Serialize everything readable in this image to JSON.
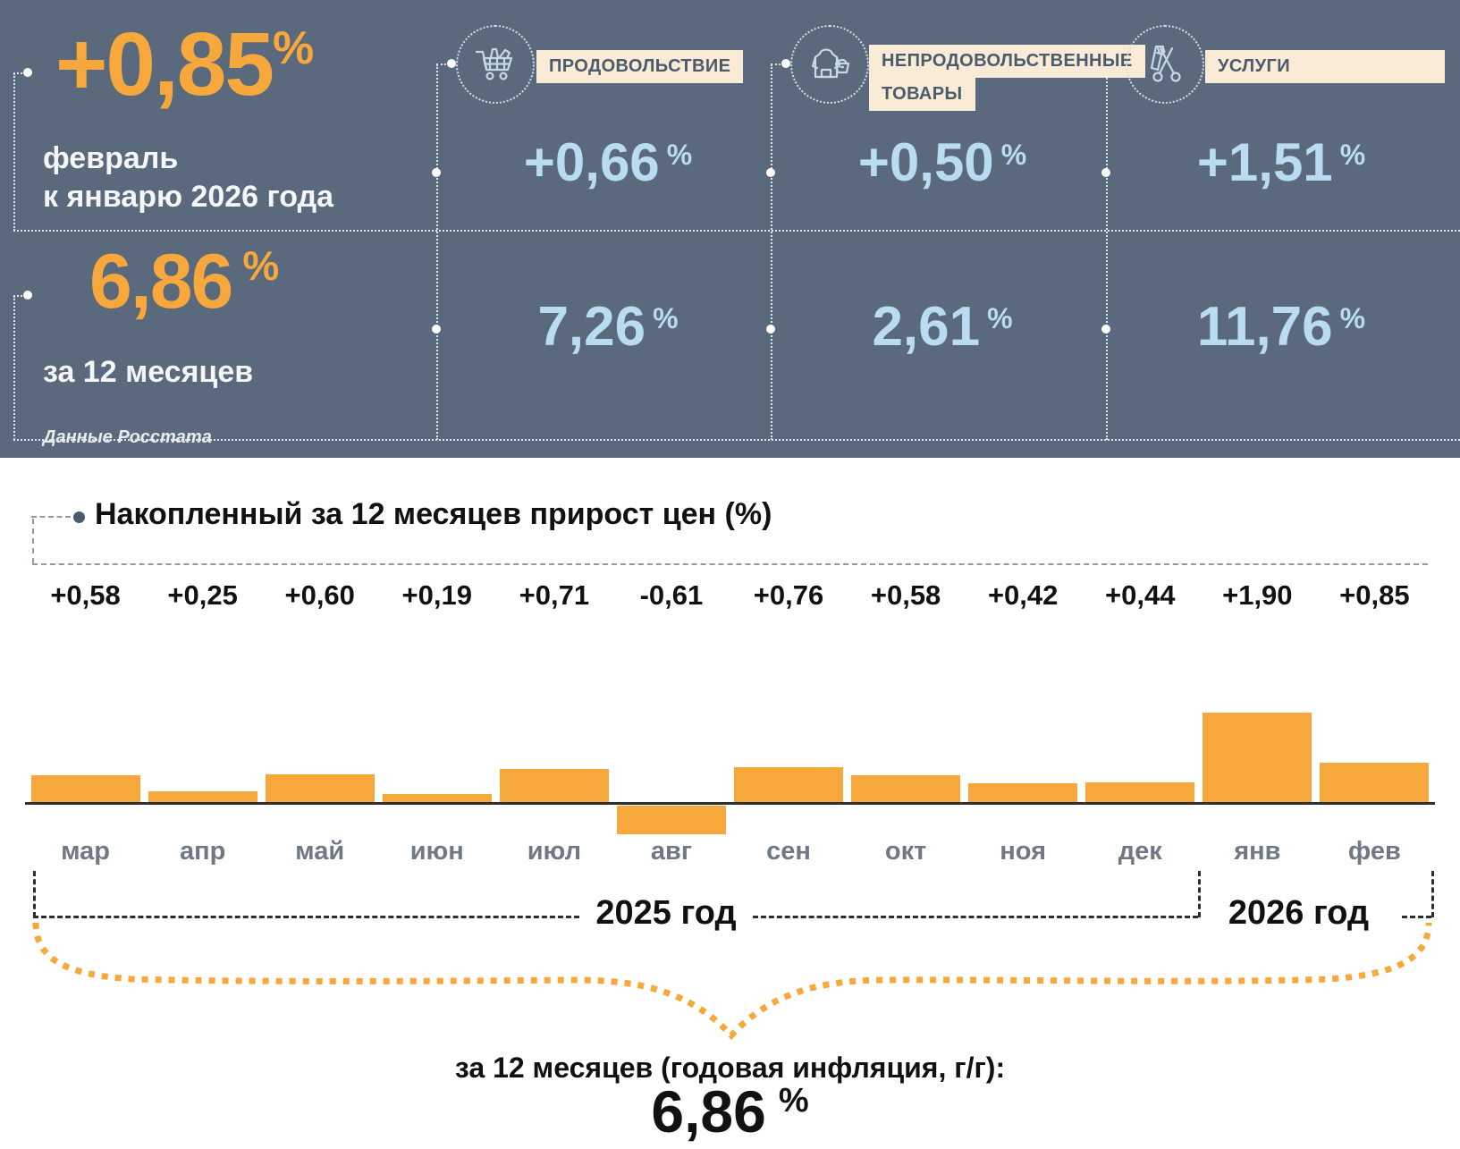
{
  "colors": {
    "band_background": "#5A6A7C",
    "accent_orange": "#F6A83C",
    "accent_light_blue": "#BADCF0",
    "label_cream": "#FAEBD7",
    "label_slate_text": "#4A5B6E",
    "month_label_gray": "#6E7887"
  },
  "header": {
    "monthly_change": {
      "value": "+0,85",
      "percent_sign": "%",
      "period_line1": "февраль",
      "period_line2": "к январю 2026 года"
    },
    "annual_change": {
      "value": "6,86",
      "percent_sign": "%",
      "period": "за 12 месяцев"
    },
    "source_note": "Данные Росстата",
    "categories": [
      {
        "icon": "shopping-cart-icon",
        "label_lines": [
          "ПРОДОВОЛЬСТВИЕ",
          ""
        ],
        "monthly_value": "+0,66",
        "monthly_percent": "%",
        "annual_value": "7,26",
        "annual_percent": "%"
      },
      {
        "icon": "clothes-and-bag-icon",
        "label_lines": [
          "НЕПРОДОВОЛЬСТВЕННЫЕ",
          "ТОВАРЫ"
        ],
        "monthly_value": "+0,50",
        "monthly_percent": "%",
        "annual_value": "2,61",
        "annual_percent": "%"
      },
      {
        "icon": "comb-and-scissors-icon",
        "label_lines": [
          "УСЛУГИ",
          ""
        ],
        "monthly_value": "+1,51",
        "monthly_percent": "%",
        "annual_value": "11,76",
        "annual_percent": "%"
      }
    ]
  },
  "chart_section": {
    "title": "Накопленный за 12 месяцев прирост цен (%)",
    "year_label_2025": "2025 год",
    "year_label_2026": "2026 год",
    "footer_label": "за 12 месяцев (годовая инфляция, г/г):",
    "footer_value": "6,86",
    "footer_percent": "%"
  },
  "chart_data": {
    "type": "bar",
    "title": "Накопленный за 12 месяцев прирост цен (%)",
    "categories": [
      "мар",
      "апр",
      "май",
      "июн",
      "июл",
      "авг",
      "сен",
      "окт",
      "ноя",
      "дек",
      "янв",
      "фев"
    ],
    "values": [
      0.58,
      0.25,
      0.6,
      0.19,
      0.71,
      -0.61,
      0.76,
      0.58,
      0.42,
      0.44,
      1.9,
      0.85
    ],
    "value_labels": [
      "+0,58",
      "+0,25",
      "+0,60",
      "+0,19",
      "+0,71",
      "-0,61",
      "+0,76",
      "+0,58",
      "+0,42",
      "+0,44",
      "+1,90",
      "+0,85"
    ],
    "bar_color": "#F6A83C",
    "baseline_color": "#2F2F2F",
    "grid": false,
    "legend": "none",
    "ylim": [
      -0.7,
      2.0
    ],
    "year_groups": [
      {
        "label": "2025 год",
        "from": "мар",
        "to": "дек"
      },
      {
        "label": "2026 год",
        "from": "янв",
        "to": "фев"
      }
    ]
  }
}
